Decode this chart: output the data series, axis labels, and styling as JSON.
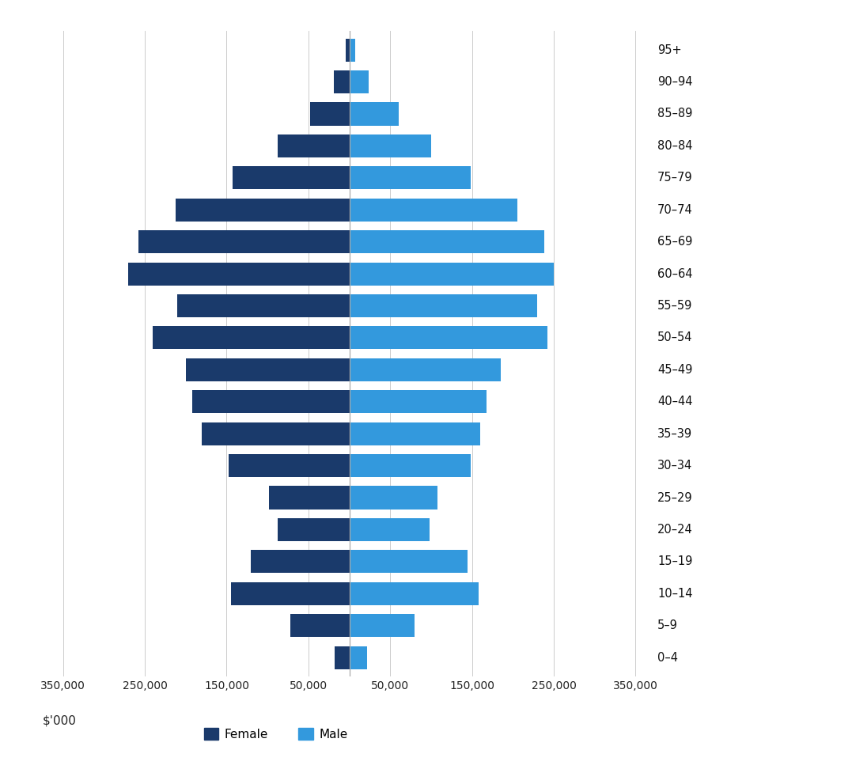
{
  "age_groups": [
    "0–4",
    "5–9",
    "10–14",
    "15–19",
    "20–24",
    "25–29",
    "30–34",
    "35–39",
    "40–44",
    "45–49",
    "50–54",
    "55–59",
    "60–64",
    "65–69",
    "70–74",
    "75–79",
    "80–84",
    "85–89",
    "90–94",
    "95+"
  ],
  "female_values": [
    18000,
    72000,
    145000,
    120000,
    88000,
    98000,
    148000,
    180000,
    192000,
    200000,
    240000,
    210000,
    270000,
    258000,
    212000,
    143000,
    88000,
    48000,
    19000,
    4000
  ],
  "male_values": [
    22000,
    80000,
    158000,
    145000,
    98000,
    108000,
    148000,
    160000,
    168000,
    185000,
    242000,
    230000,
    250000,
    238000,
    205000,
    148000,
    100000,
    60000,
    24000,
    7000
  ],
  "female_color": "#1a3a6b",
  "male_color": "#3399dd",
  "xlim": 375000,
  "xlabel": "$'000",
  "background_color": "#ffffff",
  "grid_color": "#cccccc",
  "bar_height": 0.72,
  "tick_positions": [
    -350000,
    -250000,
    -150000,
    -50000,
    50000,
    150000,
    250000,
    350000
  ],
  "tick_labels": [
    "350,000",
    "250,000",
    "150,000",
    "50,000",
    "50,000",
    "150,000",
    "250,000",
    "350,000"
  ]
}
